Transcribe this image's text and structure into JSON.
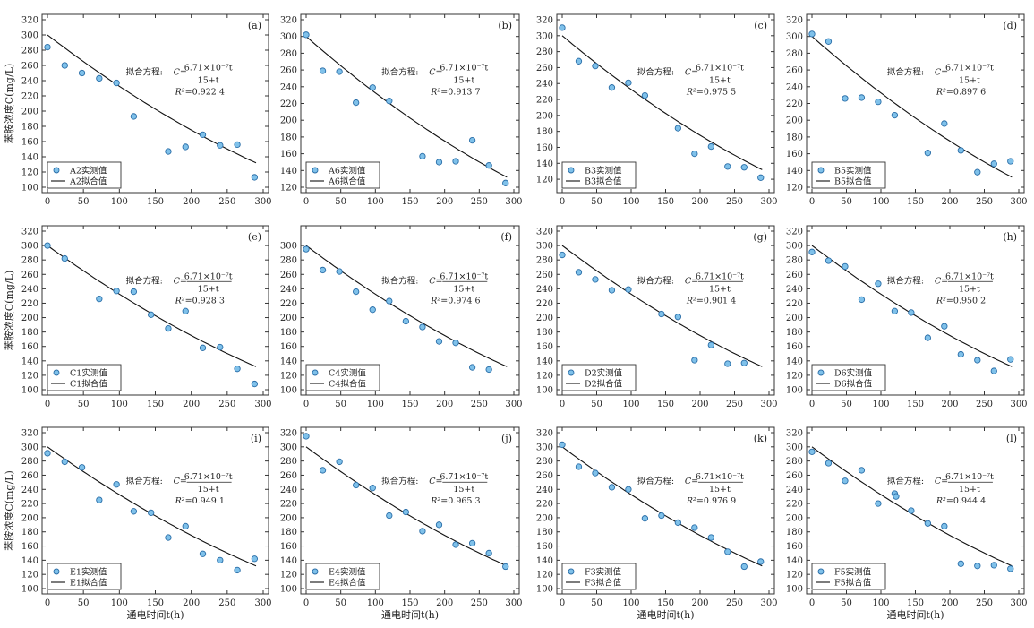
{
  "chart_data": [
    {
      "type": "scatter",
      "panel": "(a)",
      "xlim": [
        0,
        300
      ],
      "ylim": [
        100,
        320
      ],
      "ylabel": "苯胺浓度C(mg/L)",
      "xlabel": "",
      "xticks": [
        0,
        50,
        100,
        150,
        200,
        250,
        300
      ],
      "yticks": [
        100,
        120,
        140,
        160,
        180,
        200,
        220,
        240,
        260,
        280,
        300,
        320
      ],
      "legend": {
        "position": "bottom-left",
        "measured": "A2实测值",
        "fitted": "A2拟合值"
      },
      "annotation": {
        "prefix": "拟合方程:",
        "lhs": "C=",
        "numerator": "6.71×10⁻⁷t",
        "denominator": "15+t",
        "r2": "0.922 4"
      },
      "series": [
        {
          "name": "A2实测值",
          "style": "marker",
          "x": [
            0,
            24,
            48,
            72,
            96,
            120,
            168,
            192,
            216,
            240,
            264,
            288
          ],
          "y": [
            284,
            260,
            250,
            243,
            237,
            193,
            147,
            153,
            169,
            155,
            156,
            113
          ]
        },
        {
          "name": "A2拟合值",
          "style": "line",
          "curve": "fit"
        }
      ]
    },
    {
      "type": "scatter",
      "panel": "(b)",
      "xlim": [
        0,
        300
      ],
      "ylim": [
        120,
        320
      ],
      "ylabel": "",
      "xlabel": "",
      "xticks": [
        0,
        50,
        100,
        150,
        200,
        250,
        300
      ],
      "yticks": [
        120,
        140,
        160,
        180,
        200,
        220,
        240,
        260,
        280,
        300,
        320
      ],
      "legend": {
        "position": "bottom-left",
        "measured": "A6实测值",
        "fitted": "A6拟合值"
      },
      "annotation": {
        "prefix": "拟合方程:",
        "lhs": "C=",
        "numerator": "6.71×10⁻⁷t",
        "denominator": "15+t",
        "r2": "0.913 7"
      },
      "series": [
        {
          "name": "A6实测值",
          "style": "marker",
          "x": [
            0,
            24,
            48,
            72,
            96,
            120,
            168,
            192,
            216,
            240,
            264,
            288
          ],
          "y": [
            302,
            259,
            258,
            221,
            239,
            223,
            157,
            150,
            151,
            176,
            146,
            125
          ]
        },
        {
          "name": "A6拟合值",
          "style": "line",
          "curve": "fit"
        }
      ]
    },
    {
      "type": "scatter",
      "panel": "(c)",
      "xlim": [
        0,
        300
      ],
      "ylim": [
        110,
        320
      ],
      "ylabel": "",
      "xlabel": "",
      "xticks": [
        0,
        50,
        100,
        150,
        200,
        250,
        300
      ],
      "yticks": [
        120,
        140,
        160,
        180,
        200,
        220,
        240,
        260,
        280,
        300,
        320
      ],
      "legend": {
        "position": "bottom-left",
        "measured": "B3实测值",
        "fitted": "B3拟合值"
      },
      "annotation": {
        "prefix": "拟合方程:",
        "lhs": "C=",
        "numerator": "6.71×10⁻⁷t",
        "denominator": "15+t",
        "r2": "0.975 5"
      },
      "series": [
        {
          "name": "B3实测值",
          "style": "marker",
          "x": [
            0,
            24,
            48,
            72,
            96,
            120,
            168,
            192,
            216,
            240,
            264,
            288
          ],
          "y": [
            310,
            268,
            262,
            235,
            241,
            225,
            184,
            152,
            161,
            136,
            135,
            122
          ]
        },
        {
          "name": "B3拟合值",
          "style": "line",
          "curve": "fit"
        }
      ]
    },
    {
      "type": "scatter",
      "panel": "(d)",
      "xlim": [
        0,
        300
      ],
      "ylim": [
        120,
        320
      ],
      "ylabel": "",
      "xlabel": "",
      "xticks": [
        0,
        50,
        100,
        150,
        200,
        250,
        300
      ],
      "yticks": [
        120,
        140,
        160,
        180,
        200,
        220,
        240,
        260,
        280,
        300,
        320
      ],
      "legend": {
        "position": "bottom-left",
        "measured": "B5实测值",
        "fitted": "B5拟合值"
      },
      "annotation": {
        "prefix": "拟合方程:",
        "lhs": "C=",
        "numerator": "6.71×10⁻⁷t",
        "denominator": "15+t",
        "r2": "0.897 6"
      },
      "series": [
        {
          "name": "B5实测值",
          "style": "marker",
          "x": [
            0,
            24,
            48,
            72,
            96,
            120,
            168,
            192,
            216,
            240,
            264,
            288
          ],
          "y": [
            303,
            294,
            226,
            227,
            222,
            206,
            161,
            196,
            164,
            138,
            148,
            151
          ]
        },
        {
          "name": "B5拟合值",
          "style": "line",
          "curve": "fit"
        }
      ]
    },
    {
      "type": "scatter",
      "panel": "(e)",
      "xlim": [
        0,
        300
      ],
      "ylim": [
        100,
        320
      ],
      "ylabel": "苯胺浓度C(mg/L)",
      "xlabel": "",
      "xticks": [
        0,
        50,
        100,
        150,
        200,
        250,
        300
      ],
      "yticks": [
        100,
        120,
        140,
        160,
        180,
        200,
        220,
        240,
        260,
        280,
        300,
        320
      ],
      "legend": {
        "position": "bottom-left",
        "measured": "C1实测值",
        "fitted": "C1拟合值"
      },
      "annotation": {
        "prefix": "拟合方程:",
        "lhs": "C=",
        "numerator": "6.71×10⁻⁷t",
        "denominator": "15+t",
        "r2": "0.928 3"
      },
      "series": [
        {
          "name": "C1实测值",
          "style": "marker",
          "x": [
            0,
            24,
            72,
            96,
            120,
            144,
            168,
            192,
            216,
            240,
            264,
            288
          ],
          "y": [
            300,
            282,
            226,
            237,
            236,
            204,
            185,
            209,
            158,
            159,
            129,
            108
          ]
        },
        {
          "name": "C1拟合值",
          "style": "line",
          "curve": "fit"
        }
      ]
    },
    {
      "type": "scatter",
      "panel": "(f)",
      "xlim": [
        0,
        300
      ],
      "ylim": [
        100,
        320
      ],
      "ylabel": "",
      "xlabel": "",
      "xticks": [
        0,
        50,
        100,
        150,
        200,
        250,
        300
      ],
      "yticks": [
        100,
        120,
        140,
        160,
        180,
        200,
        220,
        240,
        260,
        280,
        300
      ],
      "legend": {
        "position": "bottom-left",
        "measured": "C4实测值",
        "fitted": "C4拟合值"
      },
      "annotation": {
        "prefix": "拟合方程:",
        "lhs": "C=",
        "numerator": "6.71×10⁻⁷t",
        "denominator": "15+t",
        "r2": "0.974 6"
      },
      "series": [
        {
          "name": "C4实测值",
          "style": "marker",
          "x": [
            0,
            24,
            48,
            72,
            96,
            120,
            144,
            168,
            192,
            216,
            240,
            264
          ],
          "y": [
            295,
            266,
            264,
            236,
            211,
            223,
            195,
            187,
            167,
            165,
            131,
            128
          ]
        },
        {
          "name": "C4拟合值",
          "style": "line",
          "curve": "fit"
        }
      ]
    },
    {
      "type": "scatter",
      "panel": "(g)",
      "xlim": [
        0,
        300
      ],
      "ylim": [
        100,
        320
      ],
      "ylabel": "",
      "xlabel": "",
      "xticks": [
        0,
        50,
        100,
        150,
        200,
        250,
        300
      ],
      "yticks": [
        100,
        120,
        140,
        160,
        180,
        200,
        220,
        240,
        260,
        280,
        300,
        320
      ],
      "legend": {
        "position": "bottom-left",
        "measured": "D2实测值",
        "fitted": "D2拟合值"
      },
      "annotation": {
        "prefix": "拟合方程:",
        "lhs": "C=",
        "numerator": "6.71×10⁻⁷t",
        "denominator": "15+t",
        "r2": "0.901 4"
      },
      "series": [
        {
          "name": "D2实测值",
          "style": "marker",
          "x": [
            0,
            24,
            48,
            72,
            96,
            144,
            168,
            192,
            216,
            240,
            264
          ],
          "y": [
            287,
            263,
            253,
            238,
            239,
            205,
            201,
            141,
            162,
            136,
            137
          ]
        },
        {
          "name": "D2拟合值",
          "style": "line",
          "curve": "fit"
        }
      ]
    },
    {
      "type": "scatter",
      "panel": "(h)",
      "xlim": [
        0,
        300
      ],
      "ylim": [
        100,
        320
      ],
      "ylabel": "",
      "xlabel": "",
      "xticks": [
        0,
        50,
        100,
        150,
        200,
        250,
        300
      ],
      "yticks": [
        100,
        120,
        140,
        160,
        180,
        200,
        220,
        240,
        260,
        280,
        300,
        320
      ],
      "legend": {
        "position": "bottom-left",
        "measured": "D6实测值",
        "fitted": "D6拟合值"
      },
      "annotation": {
        "prefix": "拟合方程:",
        "lhs": "C=",
        "numerator": "6.71×10⁻⁷t",
        "denominator": "15+t",
        "r2": "0.950 2"
      },
      "series": [
        {
          "name": "D6实测值",
          "style": "marker",
          "x": [
            0,
            24,
            48,
            72,
            96,
            120,
            144,
            168,
            192,
            216,
            240,
            264,
            288
          ],
          "y": [
            291,
            279,
            271,
            225,
            247,
            209,
            207,
            172,
            188,
            149,
            141,
            126,
            142
          ]
        },
        {
          "name": "D6拟合值",
          "style": "line",
          "curve": "fit"
        }
      ]
    },
    {
      "type": "scatter",
      "panel": "(i)",
      "xlim": [
        0,
        300
      ],
      "ylim": [
        100,
        320
      ],
      "ylabel": "苯胺浓度C(mg/L)",
      "xlabel": "通电时间t(h)",
      "xticks": [
        0,
        50,
        100,
        150,
        200,
        250,
        300
      ],
      "yticks": [
        100,
        120,
        140,
        160,
        180,
        200,
        220,
        240,
        260,
        280,
        300,
        320
      ],
      "legend": {
        "position": "bottom-left",
        "measured": "E1实测值",
        "fitted": "E1拟合值"
      },
      "annotation": {
        "prefix": "拟合方程:",
        "lhs": "C=",
        "numerator": "6.71×10⁻⁷t",
        "denominator": "15+t",
        "r2": "0.949 1"
      },
      "series": [
        {
          "name": "E1实测值",
          "style": "marker",
          "x": [
            0,
            24,
            48,
            72,
            96,
            120,
            144,
            168,
            192,
            216,
            240,
            264,
            288
          ],
          "y": [
            291,
            279,
            271,
            225,
            247,
            209,
            207,
            172,
            188,
            149,
            140,
            126,
            142
          ]
        },
        {
          "name": "E1拟合值",
          "style": "line",
          "curve": "fit"
        }
      ]
    },
    {
      "type": "scatter",
      "panel": "(j)",
      "xlim": [
        0,
        300
      ],
      "ylim": [
        100,
        320
      ],
      "ylabel": "",
      "xlabel": "通电时间t(h)",
      "xticks": [
        0,
        50,
        100,
        150,
        200,
        250,
        300
      ],
      "yticks": [
        100,
        120,
        140,
        160,
        180,
        200,
        220,
        240,
        260,
        280,
        300,
        320
      ],
      "legend": {
        "position": "bottom-left",
        "measured": "E4实测值",
        "fitted": "E4拟合值"
      },
      "annotation": {
        "prefix": "拟合方程:",
        "lhs": "C=",
        "numerator": "6.71×10⁻⁷t",
        "denominator": "15+t",
        "r2": "0.965 3"
      },
      "series": [
        {
          "name": "E4实测值",
          "style": "marker",
          "x": [
            0,
            24,
            48,
            72,
            96,
            120,
            144,
            168,
            192,
            216,
            240,
            264,
            288
          ],
          "y": [
            315,
            267,
            279,
            246,
            242,
            203,
            208,
            181,
            190,
            162,
            164,
            150,
            131
          ]
        },
        {
          "name": "E4拟合值",
          "style": "line",
          "curve": "fit"
        }
      ]
    },
    {
      "type": "scatter",
      "panel": "(k)",
      "xlim": [
        0,
        300
      ],
      "ylim": [
        100,
        320
      ],
      "ylabel": "",
      "xlabel": "通电时间t(h)",
      "xticks": [
        0,
        50,
        100,
        150,
        200,
        250,
        300
      ],
      "yticks": [
        100,
        120,
        140,
        160,
        180,
        200,
        220,
        240,
        260,
        280,
        300,
        320
      ],
      "legend": {
        "position": "bottom-left",
        "measured": "F3实测值",
        "fitted": "F3拟合值"
      },
      "annotation": {
        "prefix": "拟合方程:",
        "lhs": "C=",
        "numerator": "6.71×10⁻⁷t",
        "denominator": "15+t",
        "r2": "0.976 9"
      },
      "series": [
        {
          "name": "F3实测值",
          "style": "marker",
          "x": [
            0,
            24,
            48,
            72,
            96,
            120,
            144,
            168,
            192,
            216,
            240,
            264,
            288
          ],
          "y": [
            303,
            272,
            263,
            243,
            240,
            199,
            203,
            193,
            186,
            172,
            152,
            131,
            138
          ]
        },
        {
          "name": "F3拟合值",
          "style": "line",
          "curve": "fit"
        }
      ]
    },
    {
      "type": "scatter",
      "panel": "(l)",
      "xlim": [
        0,
        300
      ],
      "ylim": [
        100,
        320
      ],
      "ylabel": "",
      "xlabel": "通电时间t(h)",
      "xticks": [
        0,
        50,
        100,
        150,
        200,
        250,
        300
      ],
      "yticks": [
        100,
        120,
        140,
        160,
        180,
        200,
        220,
        240,
        260,
        280,
        300,
        320
      ],
      "legend": {
        "position": "bottom-left",
        "measured": "F5实测值",
        "fitted": "F5拟合值"
      },
      "annotation": {
        "prefix": "拟合方程:",
        "lhs": "C=",
        "numerator": "6.71×10⁻⁷t",
        "denominator": "15+t",
        "r2": "0.944 4"
      },
      "series": [
        {
          "name": "F5实测值",
          "style": "marker",
          "x": [
            0,
            24,
            48,
            72,
            96,
            120,
            122,
            144,
            168,
            192,
            216,
            240,
            264,
            288
          ],
          "y": [
            293,
            277,
            252,
            267,
            220,
            234,
            230,
            210,
            192,
            188,
            135,
            132,
            133,
            128
          ]
        },
        {
          "name": "F5拟合值",
          "style": "line",
          "curve": "fit"
        }
      ]
    }
  ]
}
